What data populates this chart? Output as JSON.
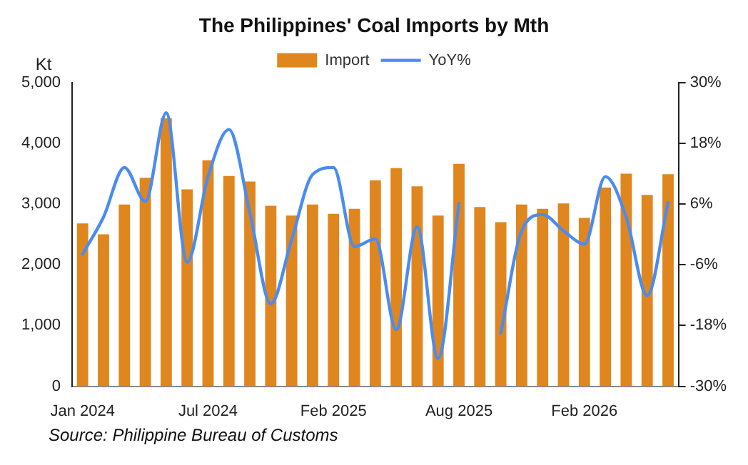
{
  "chart_data": {
    "type": "bar",
    "title": "The Philippines' Coal Imports by Mth",
    "ylabel": "Kt",
    "categories": [
      "Jan 2024",
      null,
      null,
      null,
      null,
      null,
      "Jul 2024",
      null,
      null,
      null,
      null,
      null,
      "Feb 2025",
      null,
      null,
      null,
      null,
      null,
      "Aug 2025",
      null,
      null,
      null,
      null,
      null,
      "Feb 2026",
      null,
      null,
      null,
      null
    ],
    "series": [
      {
        "name": "Import",
        "color": "#e0861e",
        "values": [
          2680,
          2500,
          2990,
          3430,
          4410,
          3240,
          3720,
          3460,
          3370,
          2970,
          2810,
          2990,
          2840,
          2920,
          3390,
          3590,
          3290,
          2810,
          3660,
          2950,
          2700,
          2990,
          2920,
          3010,
          2770,
          3270,
          3500,
          3150,
          3490
        ]
      },
      {
        "name": "YoY%",
        "type": "line",
        "axis": "y2",
        "color": "#4a8cf0",
        "values": [
          -3.9,
          3.4,
          13.2,
          6.5,
          24.0,
          -5.5,
          11.4,
          20.7,
          4.3,
          -13.7,
          -1.0,
          11.8,
          13.2,
          -2.4,
          -0.9,
          -18.8,
          1.5,
          -24.5,
          6.1,
          null,
          -19.5,
          0.7,
          3.9,
          0.7,
          -1.9,
          11.4,
          3.4,
          -12.1,
          6.3
        ]
      }
    ],
    "ylim": [
      0,
      5000
    ],
    "yticks": [
      0,
      {
        "value": 1000,
        "label": "1,000"
      },
      {
        "value": 2000,
        "label": "2,000"
      },
      {
        "value": 3000,
        "label": "3,000"
      },
      {
        "value": 4000,
        "label": "4,000"
      },
      {
        "value": 5000,
        "label": "5,000"
      }
    ],
    "y2lim": [
      -30,
      30
    ],
    "y2ticks": [
      {
        "value": -30,
        "label": "-30%"
      },
      {
        "value": -18,
        "label": "-18%"
      },
      {
        "value": -6,
        "label": "-6%"
      },
      {
        "value": 6,
        "label": "6%"
      },
      {
        "value": 18,
        "label": "18%"
      },
      {
        "value": 30,
        "label": "30%"
      }
    ],
    "grid": false,
    "legend": "top",
    "marker": "none",
    "annotations": [
      "Source: Philippine Bureau of Customs"
    ]
  }
}
